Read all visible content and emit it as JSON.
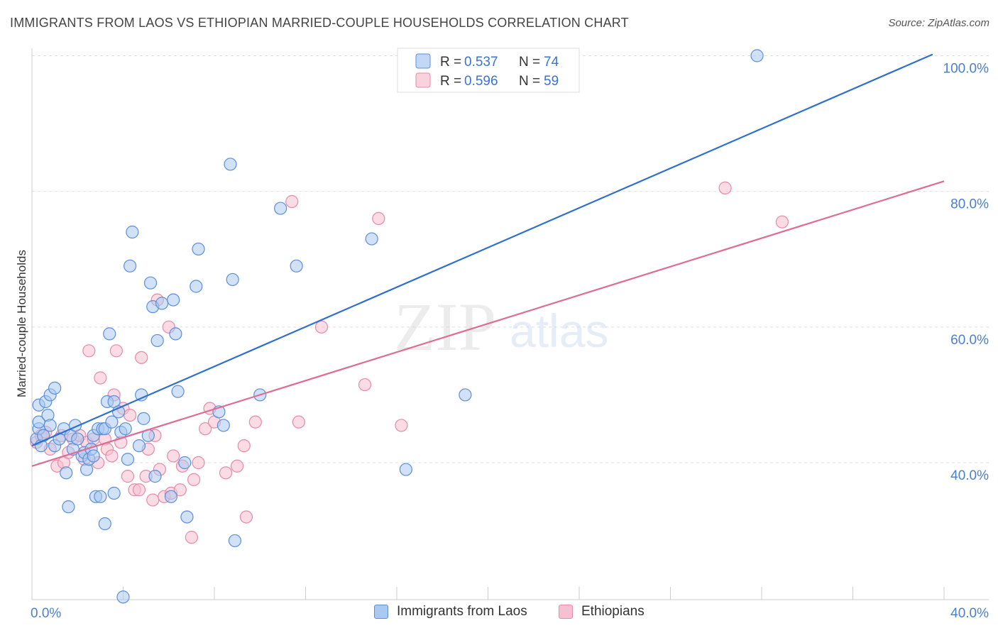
{
  "title": "IMMIGRANTS FROM LAOS VS ETHIOPIAN MARRIED-COUPLE HOUSEHOLDS CORRELATION CHART",
  "source": "Source: ZipAtlas.com",
  "watermark": {
    "zip": "ZIP",
    "atlas": "atlas"
  },
  "colors": {
    "laos_fill": "#a9c8f2",
    "laos_stroke": "#5c8fd8",
    "laos_line": "#2f6fcf",
    "eth_fill": "#f7bfd0",
    "eth_stroke": "#e58aa8",
    "eth_line": "#e06b94",
    "tick_text": "#4a7fd0",
    "grid": "#dddddd"
  },
  "chart_data": {
    "type": "scatter",
    "ylabel": "Married-couple Households",
    "xlim": [
      0,
      40
    ],
    "ylim": [
      20,
      102
    ],
    "x_tick_labels": [
      {
        "value": 0,
        "label": "0.0%"
      },
      {
        "value": 40,
        "label": "40.0%"
      }
    ],
    "y_tick_labels": [
      {
        "value": 40,
        "label": "40.0%"
      },
      {
        "value": 60,
        "label": "60.0%"
      },
      {
        "value": 80,
        "label": "80.0%"
      },
      {
        "value": 100,
        "label": "100.0%"
      }
    ],
    "y_gridlines": [
      40,
      60,
      80,
      100
    ],
    "legend": [
      {
        "series": "Immigrants from Laos",
        "r_label": "R =",
        "r": "0.537",
        "n_label": "N =",
        "n": "74"
      },
      {
        "series": "Ethiopians",
        "r_label": "R =",
        "r": "0.596",
        "n_label": "N =",
        "n": "59"
      }
    ],
    "series": [
      {
        "name": "Immigrants from Laos",
        "trend": {
          "x1": 0,
          "y1": 42.5,
          "x2": 39.5,
          "y2": 100.2
        },
        "points": [
          [
            0.2,
            43.5
          ],
          [
            0.3,
            45
          ],
          [
            0.3,
            46
          ],
          [
            0.3,
            48.5
          ],
          [
            0.4,
            42.5
          ],
          [
            0.5,
            44
          ],
          [
            0.6,
            49
          ],
          [
            0.7,
            47
          ],
          [
            0.8,
            45.5
          ],
          [
            0.8,
            50
          ],
          [
            1.0,
            51
          ],
          [
            1.0,
            42.5
          ],
          [
            1.2,
            43.5
          ],
          [
            1.4,
            45
          ],
          [
            1.5,
            38.5
          ],
          [
            1.6,
            33.5
          ],
          [
            1.7,
            44
          ],
          [
            1.8,
            42
          ],
          [
            1.9,
            45.5
          ],
          [
            2.0,
            43.5
          ],
          [
            2.2,
            41
          ],
          [
            2.3,
            41.5
          ],
          [
            2.4,
            39
          ],
          [
            2.5,
            40.5
          ],
          [
            2.6,
            42
          ],
          [
            2.7,
            44
          ],
          [
            2.7,
            41
          ],
          [
            2.8,
            35
          ],
          [
            2.9,
            45
          ],
          [
            3.0,
            35
          ],
          [
            3.1,
            45
          ],
          [
            3.2,
            45
          ],
          [
            3.2,
            31
          ],
          [
            3.3,
            49
          ],
          [
            3.4,
            59
          ],
          [
            3.5,
            46
          ],
          [
            3.6,
            49
          ],
          [
            3.6,
            35.5
          ],
          [
            3.8,
            47.5
          ],
          [
            3.9,
            44.5
          ],
          [
            4.0,
            20.2
          ],
          [
            4.1,
            45
          ],
          [
            4.2,
            40.5
          ],
          [
            4.3,
            69
          ],
          [
            4.4,
            74
          ],
          [
            4.7,
            42.5
          ],
          [
            4.8,
            50
          ],
          [
            4.9,
            46.5
          ],
          [
            5.1,
            44
          ],
          [
            5.2,
            66.5
          ],
          [
            5.3,
            63
          ],
          [
            5.4,
            38
          ],
          [
            5.5,
            58
          ],
          [
            5.7,
            63.5
          ],
          [
            6.1,
            35
          ],
          [
            6.2,
            64
          ],
          [
            6.3,
            59
          ],
          [
            6.4,
            50.5
          ],
          [
            6.7,
            40
          ],
          [
            6.8,
            32
          ],
          [
            7.2,
            66
          ],
          [
            7.3,
            71.5
          ],
          [
            8.2,
            47.5
          ],
          [
            8.4,
            45.5
          ],
          [
            8.7,
            84
          ],
          [
            8.8,
            67
          ],
          [
            8.9,
            28.5
          ],
          [
            10.0,
            50
          ],
          [
            10.9,
            77.5
          ],
          [
            11.6,
            69
          ],
          [
            14.9,
            73
          ],
          [
            16.4,
            39
          ],
          [
            19.0,
            50
          ],
          [
            31.8,
            100
          ]
        ]
      },
      {
        "name": "Ethiopians",
        "trend": {
          "x1": 0,
          "y1": 39.5,
          "x2": 40,
          "y2": 81.5
        },
        "points": [
          [
            0.2,
            43
          ],
          [
            0.4,
            44
          ],
          [
            0.6,
            44.5
          ],
          [
            0.8,
            42
          ],
          [
            1.1,
            39.5
          ],
          [
            1.3,
            44
          ],
          [
            1.4,
            40
          ],
          [
            1.6,
            41.5
          ],
          [
            1.8,
            43.5
          ],
          [
            2.1,
            44
          ],
          [
            2.3,
            40.5
          ],
          [
            2.4,
            43
          ],
          [
            2.5,
            56.5
          ],
          [
            2.7,
            43.5
          ],
          [
            2.9,
            40
          ],
          [
            3.0,
            52.5
          ],
          [
            3.2,
            43.5
          ],
          [
            3.3,
            42
          ],
          [
            3.5,
            41
          ],
          [
            3.6,
            50
          ],
          [
            3.7,
            56.5
          ],
          [
            3.9,
            43
          ],
          [
            4.0,
            48
          ],
          [
            4.2,
            38
          ],
          [
            4.3,
            47
          ],
          [
            4.5,
            36
          ],
          [
            4.7,
            36
          ],
          [
            4.8,
            55.5
          ],
          [
            5.0,
            38
          ],
          [
            5.1,
            42
          ],
          [
            5.3,
            34.5
          ],
          [
            5.4,
            44
          ],
          [
            5.5,
            64
          ],
          [
            5.6,
            39
          ],
          [
            5.8,
            35
          ],
          [
            6.0,
            60
          ],
          [
            6.1,
            35.5
          ],
          [
            6.2,
            41
          ],
          [
            6.5,
            36
          ],
          [
            6.6,
            39.5
          ],
          [
            7.0,
            29
          ],
          [
            7.1,
            37.5
          ],
          [
            7.3,
            40
          ],
          [
            7.6,
            45
          ],
          [
            7.8,
            48
          ],
          [
            8.0,
            46
          ],
          [
            8.5,
            38.5
          ],
          [
            9.0,
            39.5
          ],
          [
            9.3,
            42.5
          ],
          [
            9.4,
            32
          ],
          [
            9.8,
            46
          ],
          [
            11.4,
            78.5
          ],
          [
            11.7,
            46
          ],
          [
            12.7,
            60
          ],
          [
            14.6,
            51.5
          ],
          [
            15.2,
            76
          ],
          [
            16.2,
            45.5
          ],
          [
            30.4,
            80.5
          ],
          [
            32.9,
            75.5
          ]
        ]
      }
    ]
  }
}
